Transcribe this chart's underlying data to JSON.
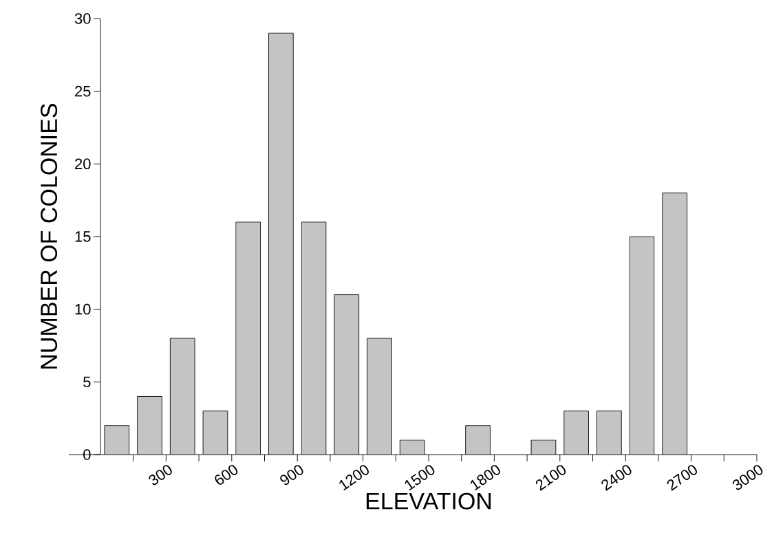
{
  "chart_data": {
    "type": "histogram",
    "xlabel": "ELEVATION",
    "ylabel": "NUMBER OF COLONIES",
    "bins": [
      0,
      150,
      300,
      450,
      600,
      750,
      900,
      1050,
      1200,
      1350,
      1500,
      1650,
      1800,
      1950,
      2100,
      2250,
      2400,
      2550,
      2700
    ],
    "values": [
      2,
      4,
      8,
      3,
      16,
      29,
      16,
      11,
      8,
      1,
      0,
      2,
      0,
      1,
      3,
      3,
      15,
      18
    ],
    "color": "#c4c4c4",
    "xlim": [
      0,
      3000
    ],
    "xticks": [
      {
        "value": 150,
        "label": null
      },
      300,
      {
        "value": 450,
        "label": null
      },
      600,
      {
        "value": 750,
        "label": null
      },
      900,
      {
        "value": 1050,
        "label": null
      },
      1200,
      {
        "value": 1350,
        "label": null
      },
      1500,
      {
        "value": 1650,
        "label": null
      },
      1800,
      {
        "value": 1950,
        "label": null
      },
      2100,
      {
        "value": 2250,
        "label": null
      },
      2400,
      {
        "value": 2550,
        "label": null
      },
      2700,
      {
        "value": 2850,
        "label": null
      },
      3000
    ],
    "ylim": [
      0,
      30
    ],
    "yticks": [
      0,
      5,
      10,
      15,
      20,
      25,
      30
    ],
    "grid": false
  }
}
